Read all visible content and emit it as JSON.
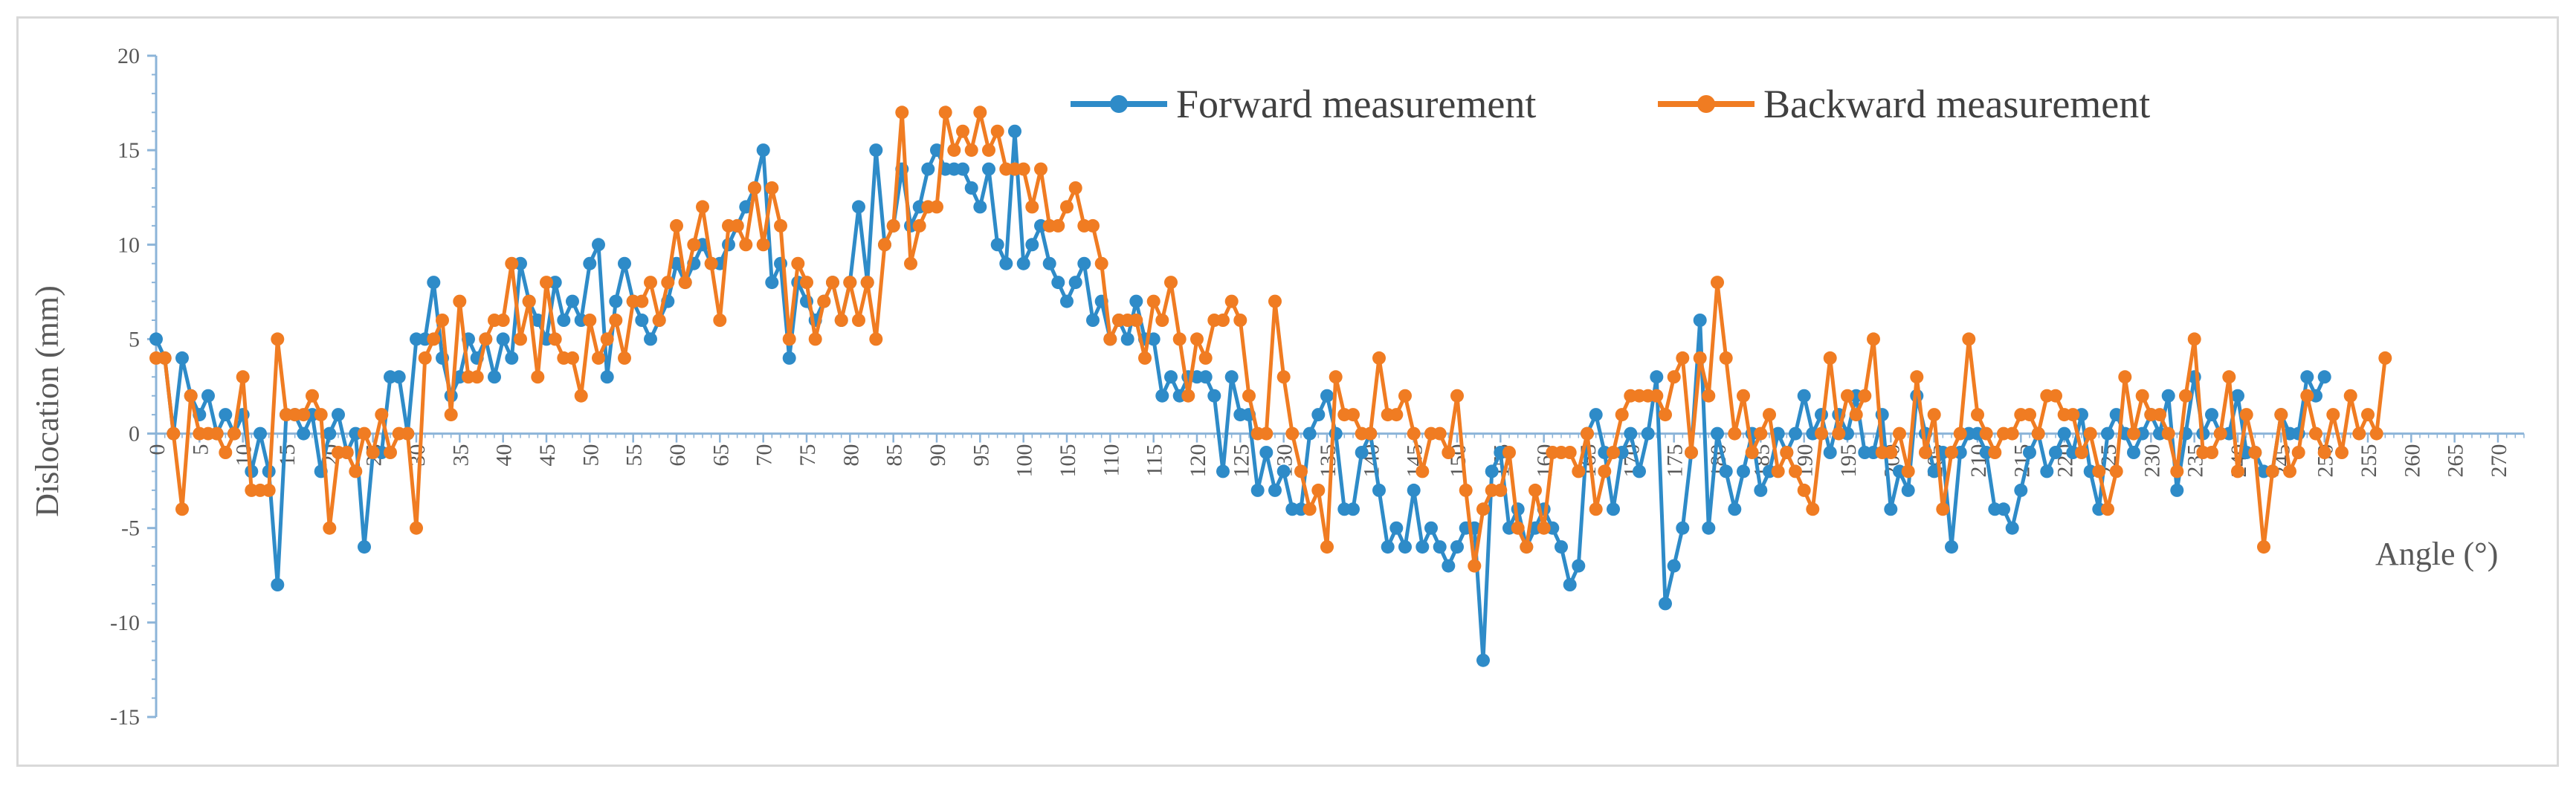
{
  "chart_data": {
    "type": "line",
    "title": "",
    "xlabel": "Angle (°)",
    "ylabel": "Dislocation (mm)",
    "ylim": [
      -15,
      20
    ],
    "yticks": [
      -15,
      -10,
      -5,
      0,
      5,
      10,
      15,
      20
    ],
    "xlim": [
      0,
      273
    ],
    "xticks": [
      0,
      5,
      10,
      15,
      20,
      25,
      30,
      35,
      40,
      45,
      50,
      55,
      60,
      65,
      70,
      75,
      80,
      85,
      90,
      95,
      100,
      105,
      110,
      115,
      120,
      125,
      130,
      135,
      140,
      145,
      150,
      155,
      160,
      165,
      170,
      175,
      180,
      185,
      190,
      195,
      200,
      205,
      210,
      215,
      220,
      225,
      230,
      235,
      240,
      245,
      250,
      255,
      260,
      265,
      270
    ],
    "legend_position": "top-right",
    "series": [
      {
        "name": "Forward measurement",
        "color": "#2e8bc8",
        "x_start": 0,
        "x_step": 1,
        "values": [
          5,
          4,
          0,
          4,
          2,
          1,
          2,
          0,
          1,
          0,
          1,
          -2,
          0,
          -2,
          -8,
          1,
          1,
          0,
          1,
          -2,
          0,
          1,
          -1,
          0,
          -6,
          -1,
          -1,
          3,
          3,
          0,
          5,
          5,
          8,
          4,
          2,
          3,
          5,
          4,
          5,
          3,
          5,
          4,
          9,
          7,
          6,
          5,
          8,
          6,
          7,
          6,
          9,
          10,
          3,
          7,
          9,
          7,
          6,
          5,
          6,
          7,
          9,
          8,
          9,
          10,
          9,
          9,
          10,
          11,
          12,
          13,
          15,
          8,
          9,
          4,
          8,
          7,
          6,
          7,
          8,
          6,
          8,
          12,
          8,
          15,
          10,
          11,
          14,
          11,
          12,
          14,
          15,
          14,
          14,
          14,
          13,
          12,
          14,
          10,
          9,
          16,
          9,
          10,
          11,
          9,
          8,
          7,
          8,
          9,
          6,
          7,
          5,
          6,
          5,
          7,
          5,
          5,
          2,
          3,
          2,
          3,
          3,
          3,
          2,
          -2,
          3,
          1,
          1,
          -3,
          -1,
          -3,
          -2,
          -4,
          -4,
          0,
          1,
          2,
          0,
          -4,
          -4,
          -1,
          0,
          -3,
          -6,
          -5,
          -6,
          -3,
          -6,
          -5,
          -6,
          -7,
          -6,
          -5,
          -5,
          -12,
          -2,
          -1,
          -5,
          -4,
          -6,
          -5,
          -4,
          -5,
          -6,
          -8,
          -7,
          0,
          1,
          -1,
          -4,
          -1,
          0,
          -2,
          0,
          3,
          -9,
          -7,
          -5,
          -1,
          6,
          -5,
          0,
          -2,
          -4,
          -2,
          0,
          -3,
          -2,
          0,
          -1,
          0,
          2,
          0,
          1,
          -1,
          1,
          0,
          2,
          -1,
          -1,
          1,
          -4,
          -2,
          -3,
          2,
          0,
          -2,
          -1,
          -6,
          -1,
          0,
          0,
          -1,
          -4,
          -4,
          -5,
          -3,
          -1,
          0,
          -2,
          -1,
          0,
          -1,
          1,
          -2,
          -4,
          0,
          1,
          0,
          -1,
          0,
          1,
          0,
          2,
          -3,
          0,
          3,
          0,
          1,
          0,
          0,
          2,
          -1,
          -1,
          -2,
          -2,
          1,
          0,
          0,
          3,
          2,
          3
        ],
        "scale": 1
      },
      {
        "name": "Backward measurement",
        "color": "#f07c22",
        "x_start": 0,
        "x_step": 1,
        "values": [
          4,
          4,
          0,
          -4,
          2,
          0,
          0,
          0,
          -1,
          0,
          3,
          -3,
          -3,
          -3,
          5,
          1,
          1,
          1,
          2,
          1,
          -5,
          -1,
          -1,
          -2,
          0,
          -1,
          1,
          -1,
          0,
          0,
          -5,
          4,
          5,
          6,
          1,
          7,
          3,
          3,
          5,
          6,
          6,
          9,
          5,
          7,
          3,
          8,
          5,
          4,
          4,
          2,
          6,
          4,
          5,
          6,
          4,
          7,
          7,
          8,
          6,
          8,
          11,
          8,
          10,
          12,
          9,
          6,
          11,
          11,
          10,
          13,
          10,
          13,
          11,
          5,
          9,
          8,
          5,
          7,
          8,
          6,
          8,
          6,
          8,
          5,
          10,
          11,
          17,
          9,
          11,
          12,
          12,
          17,
          15,
          16,
          15,
          17,
          15,
          16,
          14,
          14,
          14,
          12,
          14,
          11,
          11,
          12,
          13,
          11,
          11,
          9,
          5,
          6,
          6,
          6,
          4,
          7,
          6,
          8,
          5,
          2,
          5,
          4,
          6,
          6,
          7,
          6,
          2,
          0,
          0,
          7,
          3,
          0,
          -2,
          -4,
          -3,
          -6,
          3,
          1,
          1,
          0,
          0,
          4,
          1,
          1,
          2,
          0,
          -2,
          0,
          0,
          -1,
          2,
          -3,
          -7,
          -4,
          -3,
          -3,
          -1,
          -5,
          -6,
          -3,
          -5,
          -1,
          -1,
          -1,
          -2,
          0,
          -4,
          -2,
          -1,
          1,
          2,
          2,
          2,
          2,
          1,
          3,
          4,
          -1,
          4,
          2,
          8,
          4,
          0,
          2,
          -1,
          0,
          1,
          -2,
          -1,
          -2,
          -3,
          -4,
          0,
          4,
          0,
          2,
          1,
          2,
          5,
          -1,
          -1,
          0,
          -2,
          3,
          -1,
          1,
          -4,
          -1,
          0,
          5,
          1,
          0,
          -1,
          0,
          0,
          1,
          1,
          0,
          2,
          2,
          1,
          1,
          -1,
          0,
          -2,
          -4,
          -2,
          3,
          0,
          2,
          1,
          1,
          0,
          -2,
          2,
          5,
          -1,
          -1,
          0,
          3,
          -2,
          1,
          -1,
          -6,
          -2,
          1,
          -2,
          -1,
          2,
          0,
          -1,
          1,
          -1,
          2,
          0,
          1,
          0,
          4
        ],
        "scale": 1
      }
    ]
  }
}
